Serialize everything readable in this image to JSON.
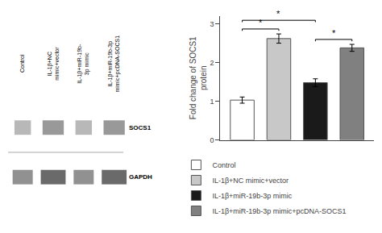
{
  "chart_data": {
    "type": "bar",
    "categories": [
      "Control",
      "IL-1β+NC mimic+vector",
      "IL-1β+miR-19b-3p mimic",
      "IL-1β+miR-19b-3p mimic+pcDNA-SOCS1"
    ],
    "values": [
      1.03,
      2.62,
      1.48,
      2.38
    ],
    "errors": [
      0.08,
      0.12,
      0.1,
      0.09
    ],
    "colors": [
      "#ffffff",
      "#c8c8c8",
      "#1a1a1a",
      "#808080"
    ],
    "ylabel": "Fold change of SOCS1\nprotein",
    "ylim": [
      0,
      3.2
    ],
    "yticks": [
      0,
      1,
      2,
      3
    ],
    "grid": false,
    "legend": "bottom",
    "tick_labels": "y",
    "annotations": [
      {
        "text": "*",
        "from": "Control",
        "to": "IL-1β+NC mimic+vector"
      },
      {
        "text": "*",
        "from": "Control",
        "to": "IL-1β+miR-19b-3p mimic"
      },
      {
        "text": "*",
        "from": "IL-1β+miR-19b-3p mimic",
        "to": "IL-1β+miR-19b-3p mimic+pcDNA-SOCS1"
      }
    ],
    "blot": {
      "lanes": [
        "Control",
        "IL-1β+NC\nmimic+vector",
        "IL-1β+miR-19b-\n3p mimic",
        "IL-1β+miR-19b-3p\nmimic+pcDNA-SOCS1"
      ],
      "bands": [
        "SOCS1",
        "GAPDH"
      ]
    }
  }
}
